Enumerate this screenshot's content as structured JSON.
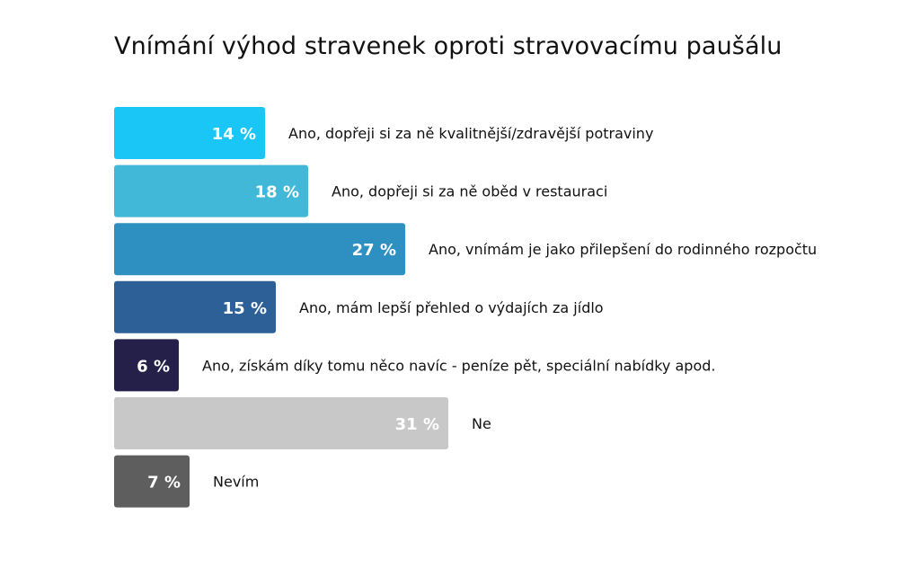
{
  "chart_data": {
    "type": "bar",
    "orientation": "horizontal",
    "title": "Vnímání výhod stravenek oproti stravovacímu paušálu",
    "xlabel": "",
    "ylabel": "",
    "grid": false,
    "legend": "none",
    "xlim": [
      0,
      31
    ],
    "unit": "%",
    "categories": [
      "Ano, dopřeji si za ně kvalitnější/zdravější potraviny",
      "Ano, dopřeji si za ně oběd v restauraci",
      "Ano, vnímám je jako přilepšení do rodinného rozpočtu",
      "Ano, mám lepší přehled o výdajích za jídlo",
      "Ano, získám díky tomu něco navíc - peníze pět, speciální nabídky apod.",
      "Ne",
      "Nevím"
    ],
    "values": [
      14,
      18,
      27,
      15,
      6,
      31,
      7
    ],
    "value_labels": [
      "14 %",
      "18 %",
      "27 %",
      "15 %",
      "6 %",
      "31 %",
      "7 %"
    ],
    "colors": [
      "#1ac6f5",
      "#42b8d8",
      "#2e90c0",
      "#2e6098",
      "#25204a",
      "#c8c8c8",
      "#5e5e5e"
    ]
  }
}
